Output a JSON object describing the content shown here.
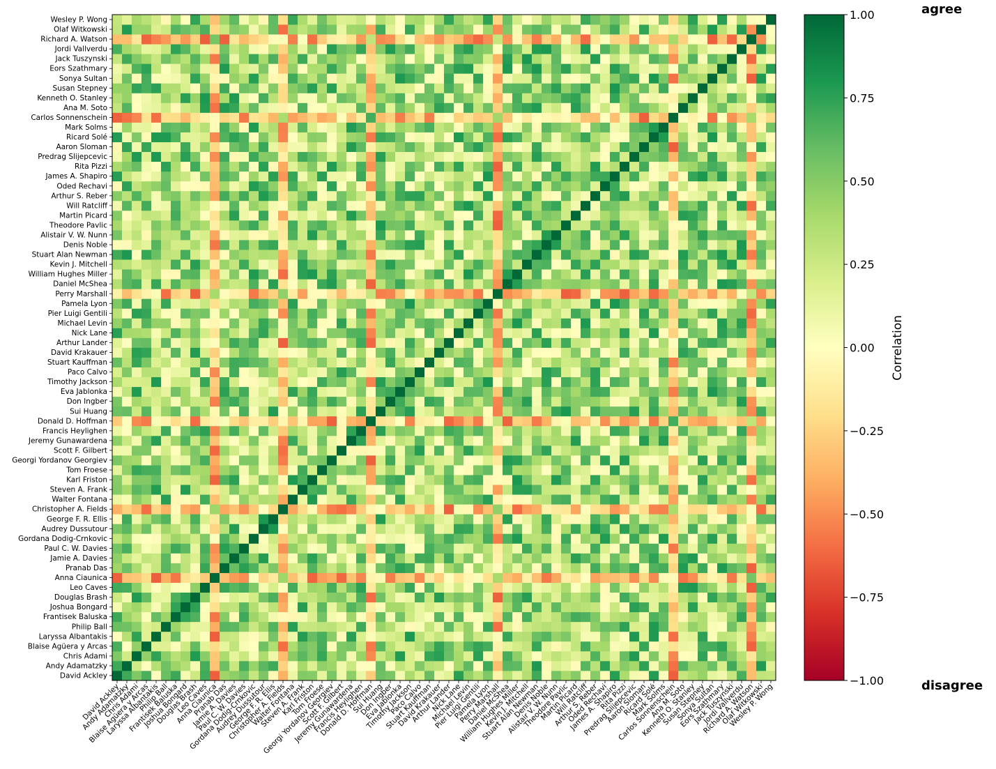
{
  "chart_data": {
    "type": "heatmap",
    "title": "",
    "xlabel": "",
    "ylabel": "",
    "names": [
      "David Ackley",
      "Andy Adamatzky",
      "Chris Adami",
      "Blaise Agüera y Arcas",
      "Laryssa Albantakis",
      "Philip Ball",
      "Frantisek Baluska",
      "Joshua Bongard",
      "Douglas Brash",
      "Leo Caves",
      "Anna Ciaunica",
      "Pranab Das",
      "Jamie A. Davies",
      "Paul C. W. Davies",
      "Gordana Dodig-Crnkovic",
      "Audrey Dussutour",
      "George F. R. Ellis",
      "Christopher A. Fields",
      "Walter Fontana",
      "Steven A. Frank",
      "Karl Friston",
      "Tom Froese",
      "Georgi Yordanov Georgiev",
      "Scott F. Gilbert",
      "Jeremy Gunawardena",
      "Francis Heylighen",
      "Donald D. Hoffman",
      "Sui Huang",
      "Don Ingber",
      "Eva Jablonka",
      "Timothy Jackson",
      "Paco Calvo",
      "Stuart Kauffman",
      "David Krakauer",
      "Arthur Lander",
      "Nick Lane",
      "Michael Levin",
      "Pier Luigi Gentili",
      "Pamela Lyon",
      "Perry Marshall",
      "Daniel McShea",
      "William Hughes Miller",
      "Kevin J. Mitchell",
      "Stuart Alan Newman",
      "Denis Noble",
      "Alistair V. W. Nunn",
      "Theodore Pavlic",
      "Martin Picard",
      "Will Ratcliff",
      "Arthur S. Reber",
      "Oded Rechavi",
      "James A. Shapiro",
      "Rita Pizzi",
      "Predrag Slijepcevic",
      "Aaron Sloman",
      "Ricard Solé",
      "Mark Solms",
      "Carlos Sonnenschein",
      "Ana M. Soto",
      "Kenneth O. Stanley",
      "Susan Stepney",
      "Sonya Sultan",
      "Eors Szathmary",
      "Jack Tuszynski",
      "Jordi Vallverdu",
      "Richard A. Watson",
      "Olaf Witkowski",
      "Wesley P. Wong"
    ],
    "vmin": -1.0,
    "vmax": 1.0,
    "colormap": "RdYlGn",
    "colorbar": {
      "label": "Correlation",
      "ticks": [
        "1.00",
        "0.75",
        "0.50",
        "0.25",
        "0.00",
        "−0.25",
        "−0.50",
        "−0.75",
        "−1.00"
      ],
      "tick_values": [
        1.0,
        0.75,
        0.5,
        0.25,
        0.0,
        -0.25,
        -0.5,
        -0.75,
        -1.0
      ]
    },
    "annotations": {
      "top": "agree",
      "bottom": "disagree"
    },
    "row_order": "bottom-to-top",
    "negative_names": [
      "Richard A. Watson",
      "Donald D. Hoffman",
      "Anna Ciaunica",
      "Perry Marshall",
      "Christopher A. Fields",
      "Carlos Sonnenschein"
    ],
    "diagonal": 1.0
  }
}
